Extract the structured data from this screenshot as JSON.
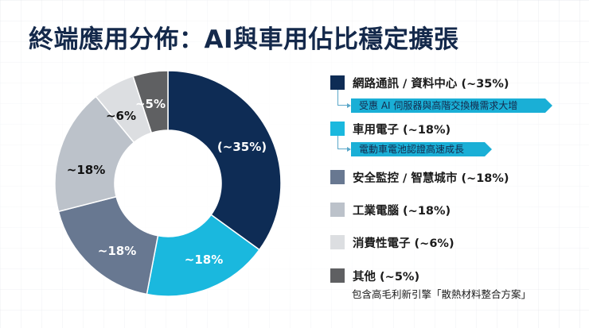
{
  "title": "終端應用分佈：AI與車用佔比穩定擴張",
  "chart_data": {
    "type": "pie",
    "subtype": "donut",
    "title": "終端應用分佈：AI與車用佔比穩定擴張",
    "start_angle_deg": 0,
    "direction": "clockwise",
    "categories": [
      "網路通訊 / 資料中心",
      "車用電子",
      "安全監控 / 智慧城市",
      "工業電腦",
      "消費性電子",
      "其他"
    ],
    "values": [
      35,
      18,
      18,
      18,
      6,
      5
    ],
    "slice_labels": [
      "(~35%)",
      "~18%",
      "~18%",
      "~18%",
      "~6%",
      "~5%"
    ],
    "colors": [
      "#0e2c55",
      "#1ab8de",
      "#687891",
      "#bcc2ca",
      "#dcdee1",
      "#5f6062"
    ],
    "label_colors": [
      "#ffffff",
      "#ffffff",
      "#ffffff",
      "#111111",
      "#111111",
      "#ffffff"
    ],
    "legend_position": "right",
    "annotations": [
      {
        "category": "網路通訊 / 資料中心",
        "text": "受惠 AI 伺服器與高階交換機需求大增"
      },
      {
        "category": "車用電子",
        "text": "電動車電池認證高速成長"
      },
      {
        "category": "其他",
        "text": "包含高毛利新引擎「散熱材料整合方案」"
      }
    ]
  },
  "legend": {
    "items": [
      {
        "label": "網路通訊 / 資料中心 (~35%)",
        "color": "#0e2c55",
        "callout": "受惠 AI 伺服器與高階交換機需求大增"
      },
      {
        "label": "車用電子 (~18%)",
        "color": "#1ab8de",
        "callout": "電動車電池認證高速成長"
      },
      {
        "label": "安全監控 / 智慧城市 (~18%)",
        "color": "#687891"
      },
      {
        "label": "工業電腦 (~18%)",
        "color": "#bcc2ca"
      },
      {
        "label": "消費性電子 (~6%)",
        "color": "#dcdee1"
      },
      {
        "label": "其他 (~5%)",
        "color": "#5f6062",
        "note": "包含高毛利新引擎「散熱材料整合方案」"
      }
    ]
  },
  "colors": {
    "title": "#14294b",
    "callout_bg": "#1aafd6",
    "connector": "#5aa7c9"
  }
}
